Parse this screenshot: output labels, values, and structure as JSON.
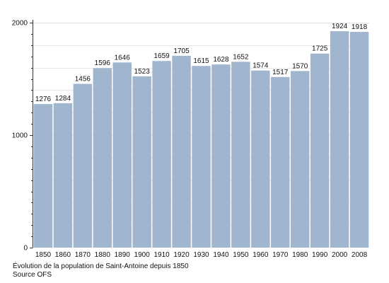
{
  "chart_data": {
    "type": "bar",
    "categories": [
      "1850",
      "1860",
      "1870",
      "1880",
      "1890",
      "1900",
      "1910",
      "1920",
      "1930",
      "1940",
      "1950",
      "1960",
      "1970",
      "1980",
      "1990",
      "2000",
      "2008"
    ],
    "values": [
      1276,
      1284,
      1456,
      1596,
      1646,
      1523,
      1659,
      1705,
      1615,
      1628,
      1652,
      1574,
      1517,
      1570,
      1725,
      1924,
      1918
    ],
    "data_labels": [
      "1276",
      "1284",
      "1456",
      "1596",
      "1646",
      "1523",
      "1659",
      "1705",
      "1615",
      "1628",
      "1652",
      "1574",
      "1517",
      "1570",
      "1725",
      "1924",
      "1918"
    ],
    "ylim": [
      0,
      2000
    ],
    "yticks": [
      "0",
      "1000",
      "2000"
    ],
    "grid": true,
    "bar_color": "#a0b6cf"
  },
  "caption": {
    "line1": "Évolution de la population de Saint-Antoine depuis 1850",
    "line2": "Source OFS"
  }
}
